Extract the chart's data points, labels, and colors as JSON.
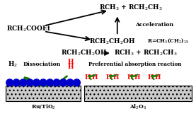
{
  "bg_color": "#ffffff",
  "text_color": "#000000",
  "red_color": "#ff0000",
  "green_color": "#1a7a00",
  "blue_color": "#0000cc",
  "arrow_color": "#000000",
  "label_rch2cooet": "RCH$_2$COOEt",
  "label_products": "RCH$_3$ + RCH$_2$CH$_3$",
  "label_alcohol": "RCH$_2$CH$_2$OH",
  "label_r_def": "R=CH$_3$(CH$_2$)$_{15}$",
  "label_acceleration": "Acceleration",
  "label_reaction_eq_left": "RCH$_2$CH$_2$OH",
  "label_reaction_arr": "→",
  "label_reaction_eq_right": "RCH$_3$ + RCH$_2$CH$_3$",
  "label_h2": "H$_2$",
  "label_dissociation": "Dissociation",
  "label_preferential": "Preferential absorption reaction",
  "label_rutio2": "Ru/TiO$_2$",
  "label_al2o3": "Al$_2$O$_3$",
  "label_H": "H"
}
